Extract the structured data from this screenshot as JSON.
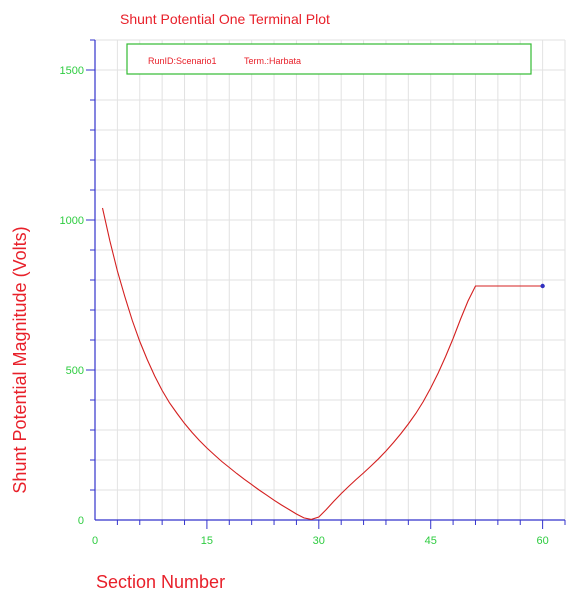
{
  "chart_data": {
    "type": "line",
    "title": "Shunt Potential One Terminal Plot",
    "xlabel": "Section Number",
    "ylabel": "Shunt Potential Magnitude (Volts)",
    "xlim": [
      0,
      63
    ],
    "ylim": [
      0,
      1600
    ],
    "xticks": [
      0,
      15,
      30,
      45,
      60
    ],
    "yticks": [
      0,
      500,
      1000,
      1500
    ],
    "grid": true,
    "legend": {
      "placement": "top",
      "items": [
        "RunID:Scenario1",
        "Term.:Harbata"
      ]
    },
    "series": [
      {
        "color": "#d42020",
        "marker_color": "#3030c0",
        "x": [
          1,
          2,
          3,
          4,
          5,
          6,
          7,
          8,
          9,
          10,
          11,
          12,
          13,
          14,
          15,
          16,
          17,
          18,
          19,
          20,
          21,
          22,
          23,
          24,
          25,
          26,
          27,
          28,
          29,
          30,
          31,
          32,
          33,
          34,
          35,
          36,
          37,
          38,
          39,
          40,
          41,
          42,
          43,
          44,
          45,
          46,
          47,
          48,
          49,
          50,
          51,
          52,
          53,
          54,
          55,
          56,
          57,
          58,
          59,
          60
        ],
        "y": [
          1040,
          930,
          830,
          745,
          665,
          595,
          535,
          480,
          432,
          390,
          355,
          322,
          292,
          265,
          240,
          217,
          195,
          175,
          155,
          136,
          118,
          100,
          83,
          66,
          50,
          35,
          20,
          7,
          2,
          10,
          35,
          62,
          88,
          112,
          135,
          157,
          180,
          204,
          230,
          258,
          288,
          320,
          355,
          395,
          440,
          490,
          545,
          605,
          670,
          730,
          780,
          780,
          780,
          780,
          780,
          780,
          780,
          780,
          780,
          780
        ]
      }
    ]
  }
}
